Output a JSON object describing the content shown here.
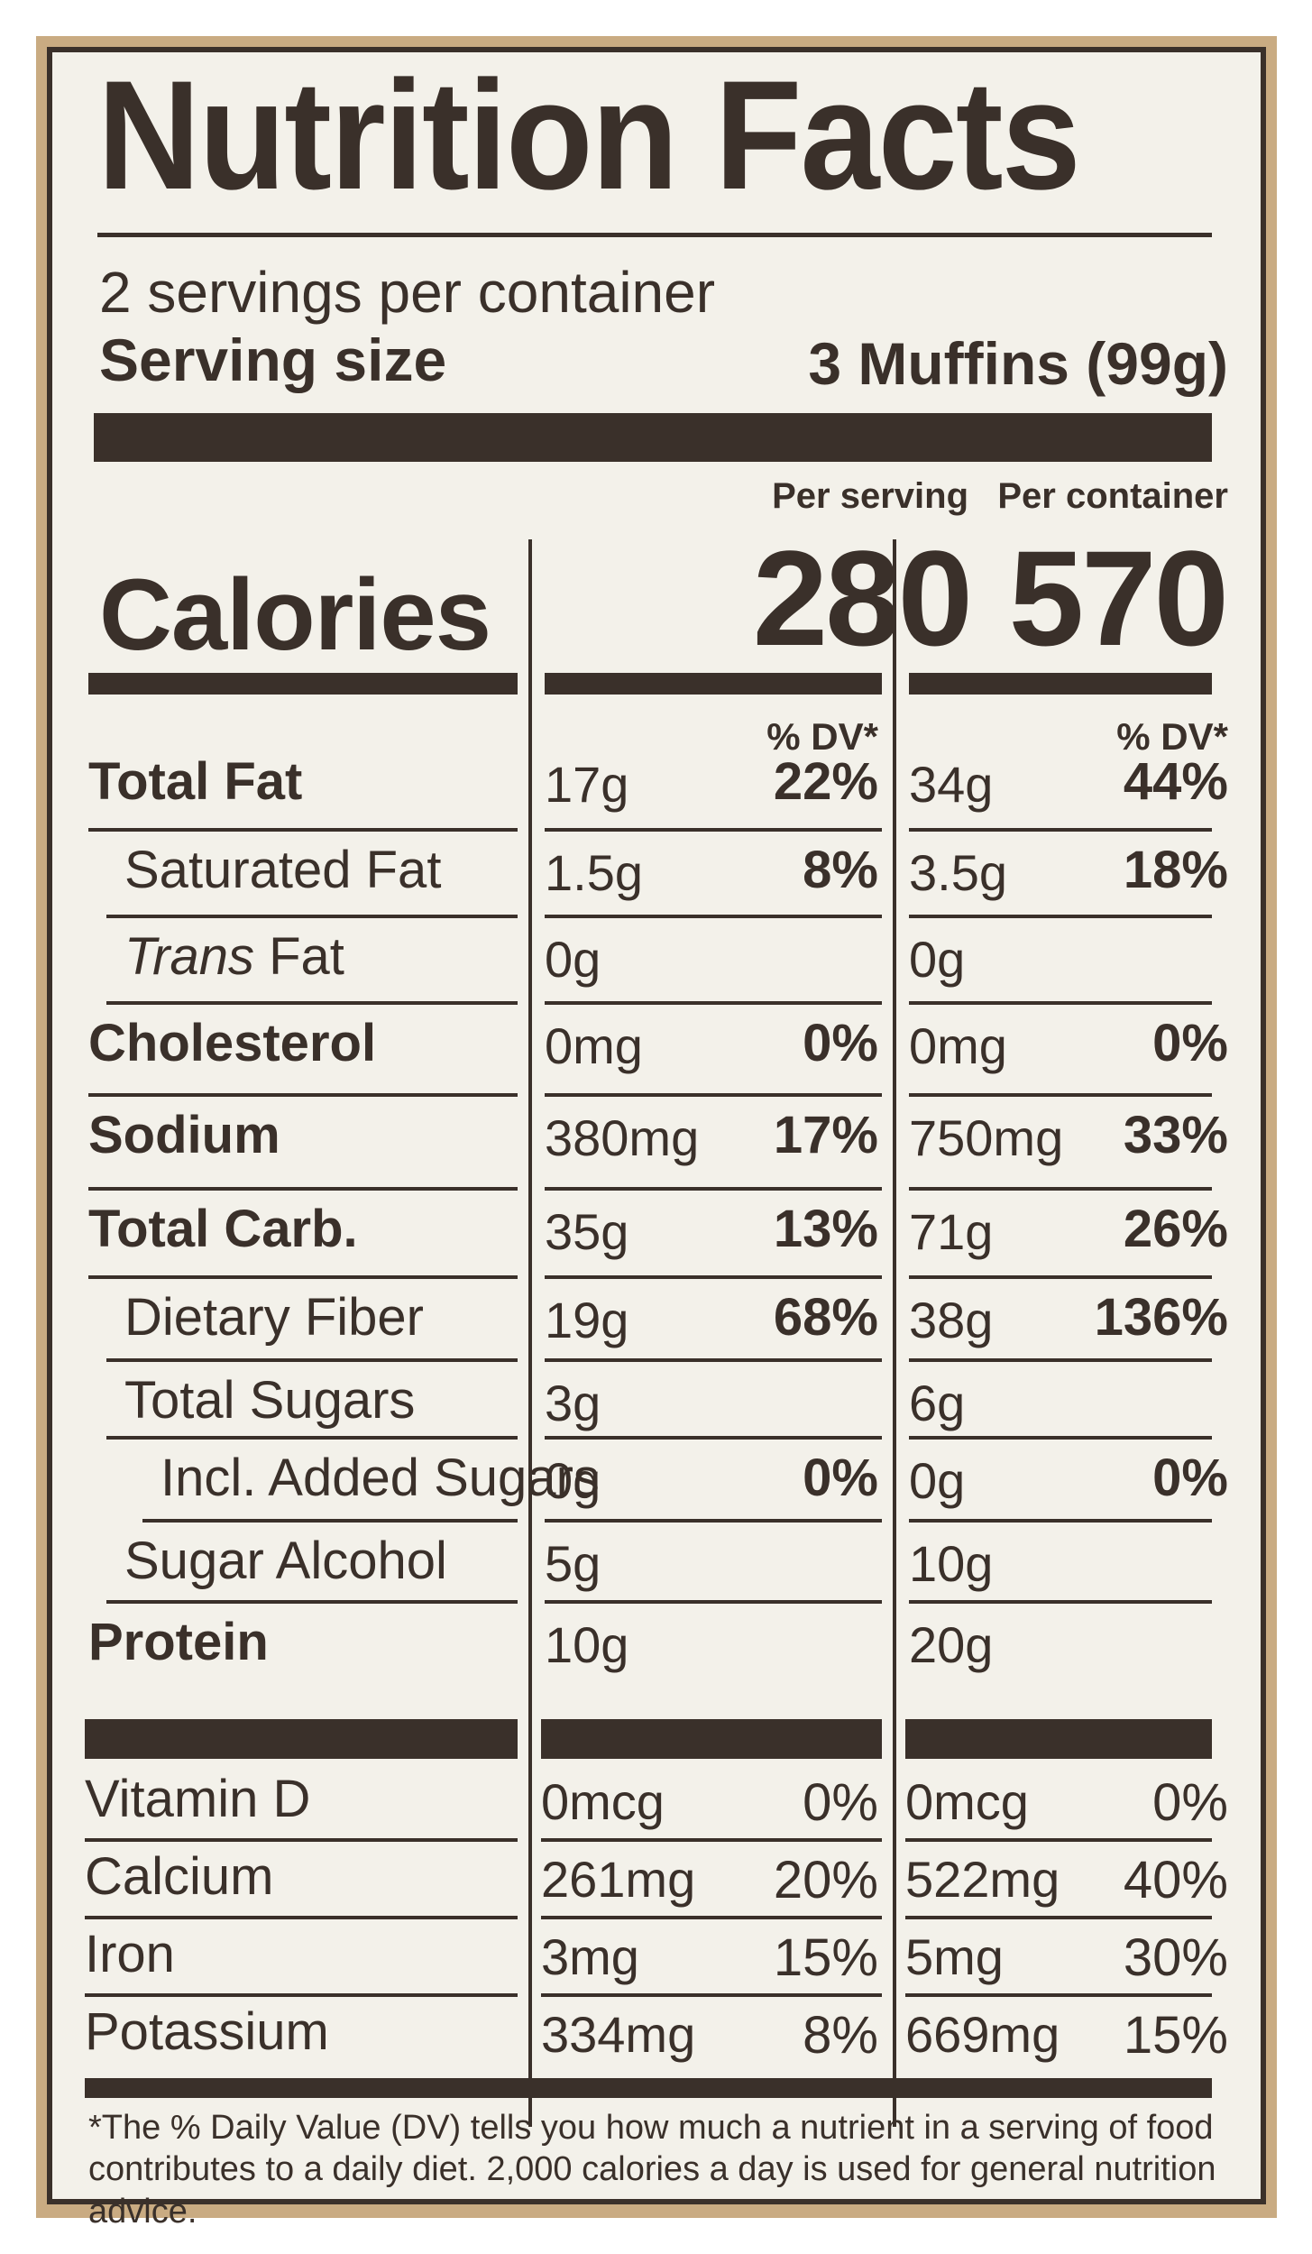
{
  "title": "Nutrition Facts",
  "servings_per_container": "2 servings per container",
  "serving_size_label": "Serving size",
  "serving_size_value": "3 Muffins (99g)",
  "col_per_serving": "Per serving",
  "col_per_container": "Per container",
  "calories_label": "Calories",
  "calories_per_serving": "280",
  "calories_per_container": "570",
  "dv_header": "% DV*",
  "nutrients": [
    {
      "name": "Total Fat",
      "serving_amount": "17g",
      "serving_dv": "22%",
      "container_amount": "34g",
      "container_dv": "44%"
    },
    {
      "name": "Saturated Fat",
      "serving_amount": "1.5g",
      "serving_dv": "8%",
      "container_amount": "3.5g",
      "container_dv": "18%"
    },
    {
      "name_italic": "Trans",
      "name": " Fat",
      "serving_amount": "0g",
      "serving_dv": "",
      "container_amount": "0g",
      "container_dv": ""
    },
    {
      "name": "Cholesterol",
      "serving_amount": "0mg",
      "serving_dv": "0%",
      "container_amount": "0mg",
      "container_dv": "0%"
    },
    {
      "name": "Sodium",
      "serving_amount": "380mg",
      "serving_dv": "17%",
      "container_amount": "750mg",
      "container_dv": "33%"
    },
    {
      "name": "Total Carb.",
      "serving_amount": "35g",
      "serving_dv": "13%",
      "container_amount": "71g",
      "container_dv": "26%"
    },
    {
      "name": "Dietary Fiber",
      "serving_amount": "19g",
      "serving_dv": "68%",
      "container_amount": "38g",
      "container_dv": "136%"
    },
    {
      "name": "Total Sugars",
      "serving_amount": "3g",
      "serving_dv": "",
      "container_amount": "6g",
      "container_dv": ""
    },
    {
      "name": "Incl. Added Sugars",
      "serving_amount": "0g",
      "serving_dv": "0%",
      "container_amount": "0g",
      "container_dv": "0%"
    },
    {
      "name": "Sugar Alcohol",
      "serving_amount": "5g",
      "serving_dv": "",
      "container_amount": "10g",
      "container_dv": ""
    },
    {
      "name": "Protein",
      "serving_amount": "10g",
      "serving_dv": "",
      "container_amount": "20g",
      "container_dv": ""
    }
  ],
  "vitamins": [
    {
      "name": "Vitamin D",
      "serving_amount": "0mcg",
      "serving_dv": "0%",
      "container_amount": "0mcg",
      "container_dv": "0%"
    },
    {
      "name": "Calcium",
      "serving_amount": "261mg",
      "serving_dv": "20%",
      "container_amount": "522mg",
      "container_dv": "40%"
    },
    {
      "name": "Iron",
      "serving_amount": "3mg",
      "serving_dv": "15%",
      "container_amount": "5mg",
      "container_dv": "30%"
    },
    {
      "name": "Potassium",
      "serving_amount": "334mg",
      "serving_dv": "8%",
      "container_amount": "669mg",
      "container_dv": "15%"
    }
  ],
  "footnote": "*The % Daily Value (DV) tells you how much a nutrient in a serving of food contributes to a daily diet. 2,000 calories a day is used for general nutrition advice."
}
